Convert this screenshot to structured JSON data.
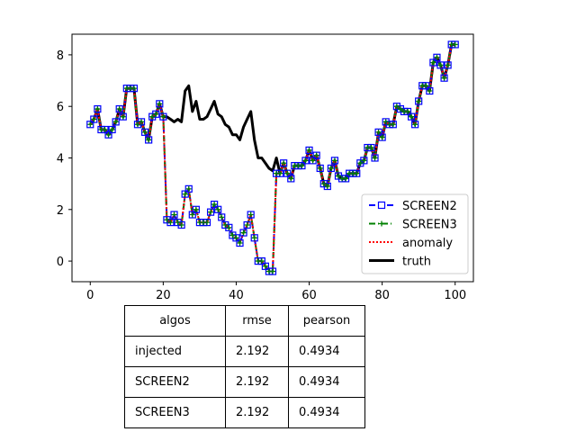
{
  "chart_data": {
    "type": "line",
    "title": "",
    "xlabel": "",
    "ylabel": "",
    "xlim": [
      -5,
      105
    ],
    "ylim": [
      -0.8,
      8.8
    ],
    "xticks": [
      0,
      20,
      40,
      60,
      80,
      100
    ],
    "yticks": [
      0,
      2,
      4,
      6,
      8
    ],
    "legend_position": "lower-right",
    "x": [
      0,
      1,
      2,
      3,
      4,
      5,
      6,
      7,
      8,
      9,
      10,
      11,
      12,
      13,
      14,
      15,
      16,
      17,
      18,
      19,
      20,
      21,
      22,
      23,
      24,
      25,
      26,
      27,
      28,
      29,
      30,
      31,
      32,
      33,
      34,
      35,
      36,
      37,
      38,
      39,
      40,
      41,
      42,
      43,
      44,
      45,
      46,
      47,
      48,
      49,
      50,
      51,
      52,
      53,
      54,
      55,
      56,
      57,
      58,
      59,
      60,
      61,
      62,
      63,
      64,
      65,
      66,
      67,
      68,
      69,
      70,
      71,
      72,
      73,
      74,
      75,
      76,
      77,
      78,
      79,
      80,
      81,
      82,
      83,
      84,
      85,
      86,
      87,
      88,
      89,
      90,
      91,
      92,
      93,
      94,
      95,
      96,
      97,
      98,
      99,
      100
    ],
    "series": [
      {
        "name": "SCREEN2",
        "color": "#0000ff",
        "values": [
          5.3,
          5.5,
          5.9,
          5.1,
          5.1,
          4.9,
          5.1,
          5.4,
          5.9,
          5.6,
          6.7,
          6.7,
          6.7,
          5.3,
          5.4,
          5.0,
          4.7,
          5.6,
          5.7,
          6.1,
          5.6,
          1.6,
          1.5,
          1.8,
          1.5,
          1.4,
          2.6,
          2.8,
          1.8,
          2.0,
          1.5,
          1.5,
          1.5,
          1.9,
          2.2,
          2.0,
          1.7,
          1.4,
          1.3,
          1.0,
          0.9,
          0.7,
          1.1,
          1.4,
          1.8,
          0.9,
          0.0,
          0.0,
          -0.2,
          -0.4,
          -0.4,
          3.4,
          3.4,
          3.8,
          3.4,
          3.2,
          3.7,
          3.7,
          3.7,
          3.9,
          4.3,
          3.9,
          4.1,
          3.6,
          3.0,
          2.9,
          3.6,
          3.9,
          3.3,
          3.2,
          3.2,
          3.4,
          3.4,
          3.4,
          3.8,
          3.9,
          4.4,
          4.4,
          4.0,
          5.0,
          4.8,
          5.4,
          5.3,
          5.3,
          6.0,
          5.9,
          5.8,
          5.8,
          5.6,
          5.3,
          6.2,
          6.8,
          6.8,
          6.6,
          7.7,
          7.9,
          7.6,
          7.1,
          7.6,
          8.4,
          8.4
        ]
      },
      {
        "name": "SCREEN3",
        "color": "#008000",
        "values": [
          5.3,
          5.5,
          5.9,
          5.1,
          5.1,
          4.9,
          5.1,
          5.4,
          5.9,
          5.6,
          6.7,
          6.7,
          6.7,
          5.3,
          5.4,
          5.0,
          4.7,
          5.6,
          5.7,
          6.1,
          5.6,
          1.6,
          1.5,
          1.8,
          1.5,
          1.4,
          2.6,
          2.8,
          1.8,
          2.0,
          1.5,
          1.5,
          1.5,
          1.9,
          2.2,
          2.0,
          1.7,
          1.4,
          1.3,
          1.0,
          0.9,
          0.7,
          1.1,
          1.4,
          1.8,
          0.9,
          0.0,
          0.0,
          -0.2,
          -0.4,
          -0.4,
          3.4,
          3.4,
          3.8,
          3.4,
          3.2,
          3.7,
          3.7,
          3.7,
          3.9,
          4.3,
          3.9,
          4.1,
          3.6,
          3.0,
          2.9,
          3.6,
          3.9,
          3.3,
          3.2,
          3.2,
          3.4,
          3.4,
          3.4,
          3.8,
          3.9,
          4.4,
          4.4,
          4.0,
          5.0,
          4.8,
          5.4,
          5.3,
          5.3,
          6.0,
          5.9,
          5.8,
          5.8,
          5.6,
          5.3,
          6.2,
          6.8,
          6.8,
          6.6,
          7.7,
          7.9,
          7.6,
          7.1,
          7.6,
          8.4,
          8.4
        ]
      },
      {
        "name": "anomaly",
        "color": "#ff0000",
        "values": [
          5.3,
          5.5,
          5.9,
          5.1,
          5.1,
          4.9,
          5.1,
          5.4,
          5.9,
          5.6,
          6.7,
          6.7,
          6.7,
          5.3,
          5.4,
          5.0,
          4.7,
          5.6,
          5.7,
          6.1,
          5.6,
          1.6,
          1.5,
          1.8,
          1.5,
          1.4,
          2.6,
          2.8,
          1.8,
          2.0,
          1.5,
          1.5,
          1.5,
          1.9,
          2.2,
          2.0,
          1.7,
          1.4,
          1.3,
          1.0,
          0.9,
          0.7,
          1.1,
          1.4,
          1.8,
          0.9,
          0.0,
          0.0,
          -0.2,
          -0.4,
          -0.4,
          3.4,
          3.4,
          3.8,
          3.4,
          3.2,
          3.7,
          3.7,
          3.7,
          3.9,
          4.3,
          3.9,
          4.1,
          3.6,
          3.0,
          2.9,
          3.6,
          3.9,
          3.3,
          3.2,
          3.2,
          3.4,
          3.4,
          3.4,
          3.8,
          3.9,
          4.4,
          4.4,
          4.0,
          5.0,
          4.8,
          5.4,
          5.3,
          5.3,
          6.0,
          5.9,
          5.8,
          5.8,
          5.6,
          5.3,
          6.2,
          6.8,
          6.8,
          6.6,
          7.7,
          7.9,
          7.6,
          7.1,
          7.6,
          8.4,
          8.4
        ]
      },
      {
        "name": "truth",
        "color": "#000000",
        "values": [
          5.3,
          5.5,
          5.9,
          5.1,
          5.1,
          4.9,
          5.1,
          5.4,
          5.9,
          5.6,
          6.7,
          6.7,
          6.7,
          5.3,
          5.4,
          5.0,
          4.7,
          5.6,
          5.7,
          6.1,
          5.6,
          5.6,
          5.5,
          5.4,
          5.5,
          5.4,
          6.6,
          6.8,
          5.8,
          6.2,
          5.5,
          5.5,
          5.6,
          5.9,
          6.2,
          5.7,
          5.6,
          5.3,
          5.2,
          4.9,
          4.9,
          4.7,
          5.2,
          5.5,
          5.8,
          4.7,
          4.0,
          4.0,
          3.8,
          3.6,
          3.5,
          4.0,
          3.4,
          3.8,
          3.4,
          3.2,
          3.7,
          3.7,
          3.7,
          3.9,
          4.3,
          3.9,
          4.1,
          3.6,
          3.0,
          2.9,
          3.6,
          3.9,
          3.3,
          3.2,
          3.2,
          3.4,
          3.4,
          3.4,
          3.8,
          3.9,
          4.4,
          4.4,
          4.0,
          5.0,
          4.8,
          5.4,
          5.3,
          5.3,
          6.0,
          5.9,
          5.8,
          5.8,
          5.6,
          5.3,
          6.2,
          6.8,
          6.8,
          6.6,
          7.7,
          7.9,
          7.6,
          7.1,
          7.6,
          8.4,
          8.4
        ]
      }
    ]
  },
  "table": {
    "columns": [
      "algos",
      "rmse",
      "pearson"
    ],
    "rows": [
      [
        "injected",
        "2.192",
        "0.4934"
      ],
      [
        "SCREEN2",
        "2.192",
        "0.4934"
      ],
      [
        "SCREEN3",
        "2.192",
        "0.4934"
      ]
    ]
  }
}
